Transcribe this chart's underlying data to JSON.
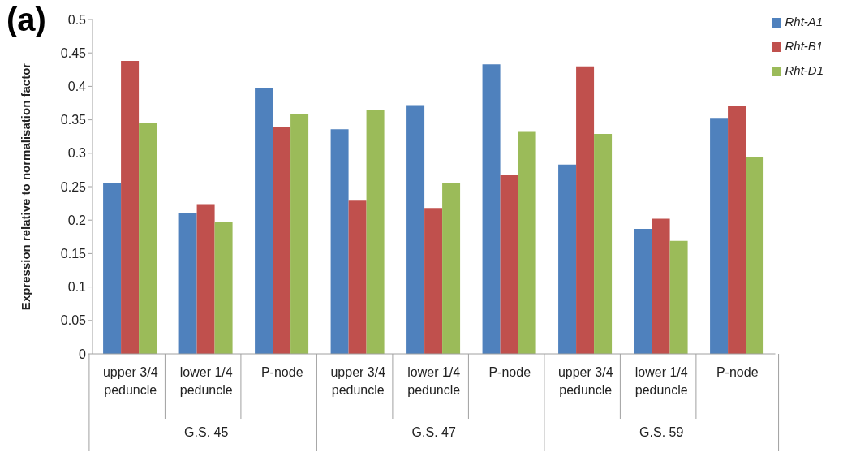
{
  "chart_data": {
    "type": "bar",
    "ylabel": "Expression relative to normalisation factor",
    "categories": [
      "upper 3/4 peduncle",
      "lower 1/4 peduncle",
      "P-node",
      "upper 3/4 peduncle",
      "lower 1/4 peduncle",
      "P-node",
      "upper 3/4 peduncle",
      "lower 1/4 peduncle",
      "P-node"
    ],
    "series": [
      {
        "name": "Rht-A1",
        "color": "#4f81bd",
        "values": [
          0.255,
          0.211,
          0.398,
          0.336,
          0.372,
          0.433,
          0.283,
          0.187,
          0.353
        ]
      },
      {
        "name": "Rht-B1",
        "color": "#c0504d",
        "values": [
          0.438,
          0.224,
          0.339,
          0.229,
          0.218,
          0.268,
          0.43,
          0.202,
          0.371
        ]
      },
      {
        "name": "Rht-D1",
        "color": "#9bbb59",
        "values": [
          0.346,
          0.197,
          0.359,
          0.364,
          0.255,
          0.332,
          0.329,
          0.169,
          0.294
        ]
      }
    ],
    "ylim": [
      0,
      0.5
    ],
    "yticks": [
      0,
      0.05,
      0.1,
      0.15,
      0.2,
      0.25,
      0.3,
      0.35,
      0.4,
      0.45,
      0.5
    ],
    "annotations": [
      "(a)",
      "G.S. 45",
      "G.S. 47",
      "G.S. 59"
    ],
    "legend": "top right"
  }
}
